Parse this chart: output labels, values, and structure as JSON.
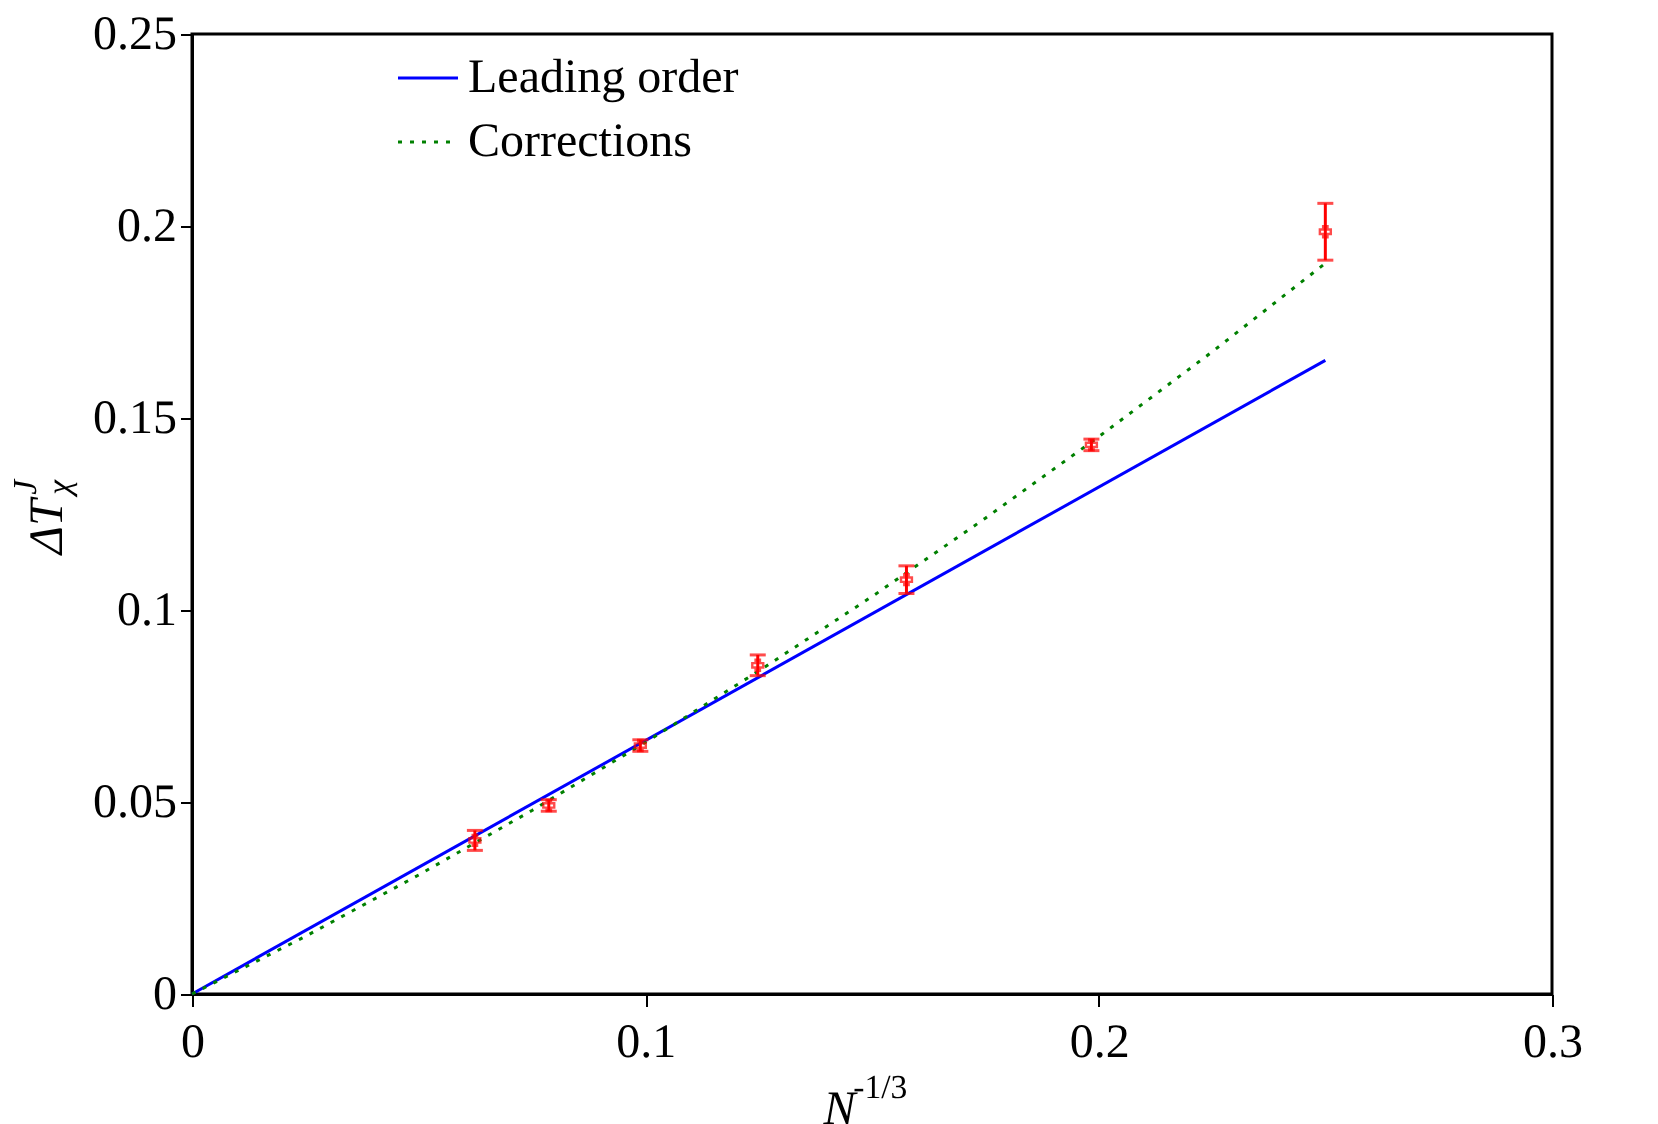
{
  "chart_data": {
    "type": "line",
    "xlabel": "N$^{-1/3}$",
    "ylabel": "ΔT$_{χ}$$^{J}$",
    "xlim": [
      0,
      0.3
    ],
    "xticks": [
      0,
      0.1,
      0.2,
      0.3
    ],
    "ylim": [
      0,
      0.25
    ],
    "yticks": [
      0,
      0.05,
      0.1,
      0.15,
      0.2,
      0.25
    ],
    "grid": false,
    "legend": "top",
    "series": [
      {
        "name": "Leading order",
        "color": "#0000ff",
        "line_style": "solid",
        "x": [
          0,
          0.25
        ],
        "values": [
          0,
          0.165
        ]
      },
      {
        "name": "Corrections",
        "color": "#008000",
        "line_style": "dotted",
        "x": [
          0,
          0.025,
          0.05,
          0.075,
          0.1,
          0.125,
          0.15,
          0.175,
          0.2,
          0.225,
          0.25
        ],
        "values": [
          0,
          0.015,
          0.031,
          0.0478,
          0.0655,
          0.0841,
          0.1035,
          0.1239,
          0.1451,
          0.1672,
          0.1903
        ]
      },
      {
        "type": "scatter",
        "color": "#ff0000",
        "marker": "cross",
        "x": [
          0.0624,
          0.0787,
          0.0989,
          0.1248,
          0.1576,
          0.1984,
          0.25
        ],
        "values": [
          0.04,
          0.0491,
          0.0647,
          0.0856,
          0.1079,
          0.143,
          0.1985
        ],
        "errors": [
          0.0026,
          0.0015,
          0.0015,
          0.0027,
          0.0036,
          0.0015,
          0.0074
        ]
      }
    ]
  }
}
